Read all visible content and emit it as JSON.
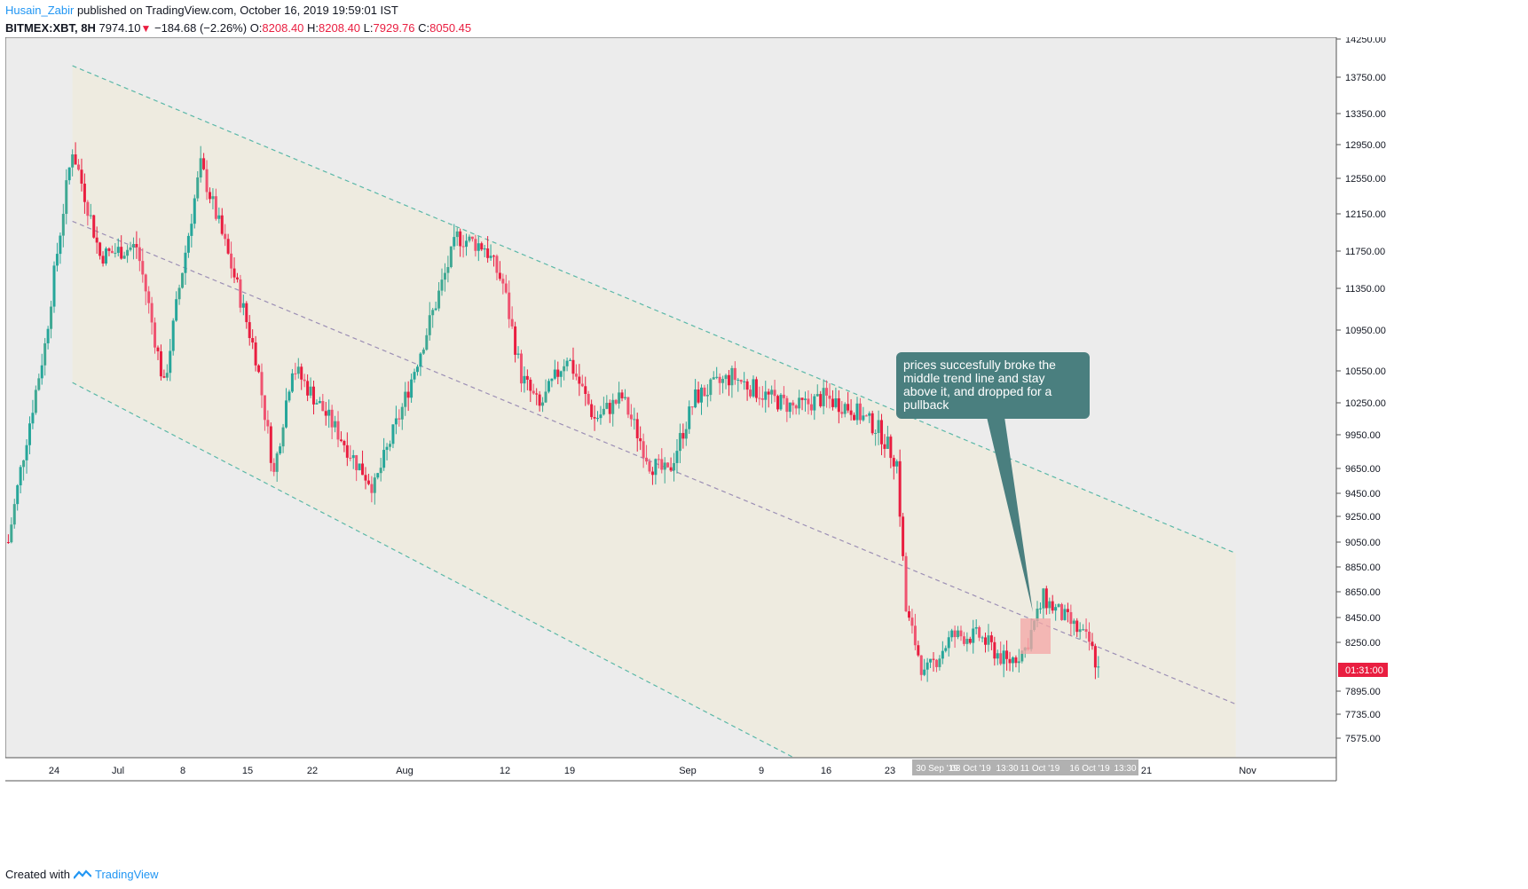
{
  "header": {
    "author": "Husain_Zabir",
    "published": "published on TradingView.com, October 16, 2019 19:59:01 IST",
    "symbol": "BITMEX:XBT, 8H",
    "last": "7974.10",
    "change": "−184.68 (−2.26%)",
    "o_label": "O:",
    "o_val": "8208.40",
    "h_label": "H:",
    "h_val": "8208.40",
    "l_label": "L:",
    "l_val": "7929.76",
    "c_label": "C:",
    "c_val": "8050.45"
  },
  "footer": {
    "created": "Created with",
    "brand": "TradingView"
  },
  "colors": {
    "up": "#3fa893",
    "up_strong": "#26a69a",
    "down": "#ef5370",
    "down_strong": "#e91e40",
    "channel_fill": "#eeebe0",
    "plot_bg": "#ececec",
    "channel_line": "#5bb8a8",
    "mid_line": "#9c8fb5",
    "callout": "#4a7f7f",
    "highlight": "#f4a6a6"
  },
  "chart_data": {
    "type": "candlestick",
    "price_axis": [
      "14250.00",
      "13750.00",
      "13350.00",
      "12950.00",
      "12550.00",
      "12150.00",
      "11750.00",
      "11350.00",
      "10950.00",
      "10550.00",
      "10250.00",
      "9950.00",
      "9650.00",
      "9450.00",
      "9250.00",
      "9050.00",
      "8850.00",
      "8650.00",
      "8450.00",
      "8250.00",
      "7895.00",
      "7735.00",
      "7575.00"
    ],
    "current_price_label": "01:31:00",
    "time_axis": [
      "24",
      "Jul",
      "8",
      "15",
      "22",
      "Aug",
      "12",
      "19",
      "Sep",
      "9",
      "16",
      "23",
      "21",
      "Nov"
    ],
    "time_axis_overlays": [
      "30 Sep '19",
      "03 Oct '19",
      "13:30",
      "11 Oct '19",
      "16 Oct '19",
      "13:30"
    ],
    "annotation": "prices succesfully broke the middle trend line and stay above it, and dropped for a pullback",
    "channel": {
      "start_date": "2019-06-26",
      "end_date": "2019-10-31",
      "upper": [
        13900,
        8960
      ],
      "middle": [
        12070,
        7805
      ],
      "lower": [
        10440,
        5910
      ]
    },
    "anchors": [
      [
        "2019-06-19",
        9050
      ],
      [
        "2019-06-23",
        10800
      ],
      [
        "2019-06-26",
        12900
      ],
      [
        "2019-06-29",
        11700
      ],
      [
        "2019-07-03",
        11800
      ],
      [
        "2019-07-06",
        10400
      ],
      [
        "2019-07-10",
        12700
      ],
      [
        "2019-07-13",
        11700
      ],
      [
        "2019-07-16",
        10700
      ],
      [
        "2019-07-18",
        9600
      ],
      [
        "2019-07-20",
        10600
      ],
      [
        "2019-07-24",
        10100
      ],
      [
        "2019-07-27",
        9700
      ],
      [
        "2019-07-29",
        9500
      ],
      [
        "2019-08-01",
        10200
      ],
      [
        "2019-08-05",
        11300
      ],
      [
        "2019-08-07",
        11900
      ],
      [
        "2019-08-10",
        11800
      ],
      [
        "2019-08-12",
        11400
      ],
      [
        "2019-08-14",
        10500
      ],
      [
        "2019-08-16",
        10200
      ],
      [
        "2019-08-19",
        10700
      ],
      [
        "2019-08-22",
        10100
      ],
      [
        "2019-08-25",
        10300
      ],
      [
        "2019-08-28",
        9700
      ],
      [
        "2019-08-30",
        9600
      ],
      [
        "2019-09-02",
        10300
      ],
      [
        "2019-09-06",
        10500
      ],
      [
        "2019-09-10",
        10300
      ],
      [
        "2019-09-13",
        10200
      ],
      [
        "2019-09-16",
        10300
      ],
      [
        "2019-09-19",
        10200
      ],
      [
        "2019-09-22",
        10000
      ],
      [
        "2019-09-24",
        9700
      ],
      [
        "2019-09-25",
        8500
      ],
      [
        "2019-09-27",
        8000
      ],
      [
        "2019-09-30",
        8300
      ],
      [
        "2019-10-03",
        8300
      ],
      [
        "2019-10-06",
        8100
      ],
      [
        "2019-10-08",
        8200
      ],
      [
        "2019-10-10",
        8600
      ],
      [
        "2019-10-13",
        8400
      ],
      [
        "2019-10-15",
        8250
      ],
      [
        "2019-10-16",
        8050
      ]
    ]
  }
}
